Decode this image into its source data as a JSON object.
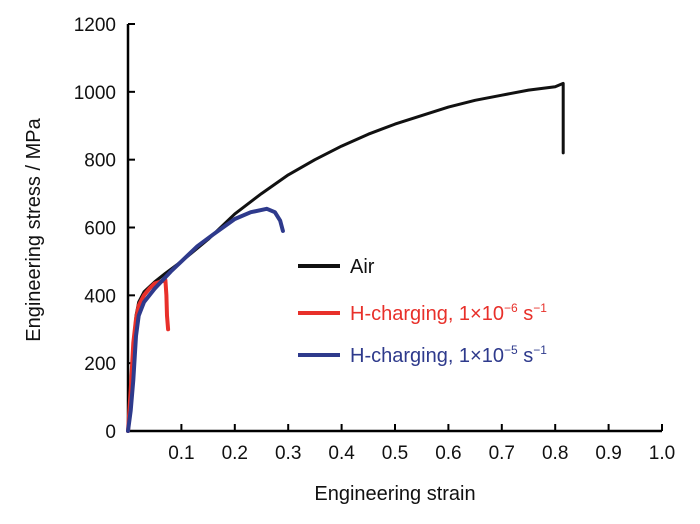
{
  "chart_data": {
    "type": "line",
    "title": "",
    "xlabel": "Engineering strain",
    "ylabel": "Engineering stress / MPa",
    "xlim": [
      0,
      1.0
    ],
    "ylim": [
      0,
      1200
    ],
    "xticks": [
      0.1,
      0.2,
      0.3,
      0.4,
      0.5,
      0.6,
      0.7,
      0.8,
      0.9,
      1.0
    ],
    "xtick_labels": [
      "0.1",
      "0.2",
      "0.3",
      "0.4",
      "0.5",
      "0.6",
      "0.7",
      "0.8",
      "0.9",
      "1.0"
    ],
    "yticks": [
      0,
      200,
      400,
      600,
      800,
      1000,
      1200
    ],
    "ytick_labels": [
      "0",
      "200",
      "400",
      "600",
      "800",
      "1000",
      "1200"
    ],
    "grid": false,
    "legend_position": "center-right",
    "series": [
      {
        "name": "Air",
        "legend_text": "Air",
        "color": "#111111",
        "x": [
          0.0,
          0.005,
          0.01,
          0.015,
          0.02,
          0.03,
          0.05,
          0.07,
          0.1,
          0.15,
          0.2,
          0.25,
          0.3,
          0.35,
          0.4,
          0.45,
          0.5,
          0.55,
          0.6,
          0.65,
          0.7,
          0.75,
          0.8,
          0.815,
          0.815,
          0.815
        ],
        "y": [
          0,
          120,
          250,
          340,
          380,
          410,
          440,
          465,
          500,
          565,
          640,
          700,
          755,
          800,
          840,
          875,
          905,
          930,
          955,
          975,
          990,
          1005,
          1015,
          1025,
          920,
          820
        ]
      },
      {
        "name": "H-charging, 1×10−6 s−1",
        "legend_main": "H-charging, 1×10",
        "legend_exp1": "−6",
        "legend_unit": " s",
        "legend_exp2": "−1",
        "color": "#e8302a",
        "x": [
          0.0,
          0.005,
          0.01,
          0.015,
          0.02,
          0.03,
          0.04,
          0.05,
          0.06,
          0.07,
          0.072,
          0.073,
          0.075
        ],
        "y": [
          0,
          120,
          260,
          330,
          370,
          400,
          420,
          435,
          440,
          445,
          400,
          340,
          300
        ]
      },
      {
        "name": "H-charging, 1×10−5 s−1",
        "legend_main": "H-charging, 1×10",
        "legend_exp1": "−5",
        "legend_unit": " s",
        "legend_exp2": "−1",
        "color": "#2e3a8c",
        "x": [
          0.0,
          0.005,
          0.01,
          0.015,
          0.02,
          0.03,
          0.05,
          0.08,
          0.1,
          0.13,
          0.16,
          0.2,
          0.23,
          0.26,
          0.275,
          0.285,
          0.29
        ],
        "y": [
          0,
          60,
          150,
          280,
          340,
          380,
          420,
          470,
          500,
          545,
          580,
          625,
          645,
          655,
          645,
          620,
          590
        ]
      }
    ]
  }
}
